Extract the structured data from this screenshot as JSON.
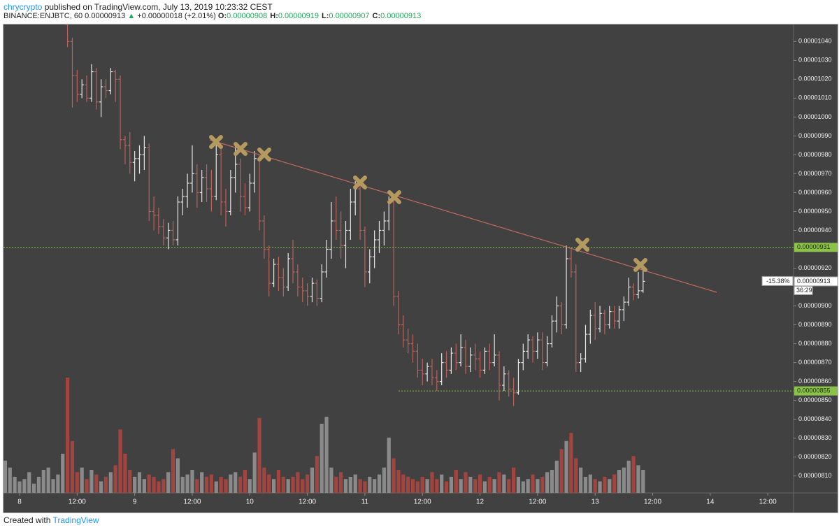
{
  "header": {
    "publisher": "chrycrypto",
    "published": "published on TradingView.com, July 13, 2019 10:23:32 CEST",
    "symbol": "BINANCE:ENJBTC, 60",
    "last": "0.00000913",
    "change": "+0.00000018 (+2.01%)",
    "ohlc": [
      {
        "label": "O:",
        "value": "0.00000908"
      },
      {
        "label": "H:",
        "value": "0.00000919"
      },
      {
        "label": "L:",
        "value": "0.00000907"
      },
      {
        "label": "C:",
        "value": "0.00000913"
      }
    ]
  },
  "footer": {
    "created": "Created with",
    "brand": "TradingView"
  },
  "chart_data": {
    "type": "ohlc",
    "xtick_labels": [
      "8",
      "12:00",
      "9",
      "12:00",
      "10",
      "12:00",
      "11",
      "12:00",
      "12",
      "12:00",
      "13",
      "12:00",
      "14",
      "12:00"
    ],
    "open": [
      null,
      null,
      null,
      null,
      null,
      null,
      null,
      null,
      null,
      null,
      null,
      null,
      null,
      1.049e-05,
      1.04e-05,
      1.022e-05,
      1.012e-05,
      1.017e-05,
      1.01e-05,
      1.024e-05,
      1.008e-05,
      1.016e-05,
      1.014e-05,
      1.024e-05,
      1.02e-05,
      9.88e-06,
      9.85e-06,
      9.76e-06,
      9.78e-06,
      9.8e-06,
      9.84e-06,
      9.5e-06,
      9.48e-06,
      9.42e-06,
      9.36e-06,
      9.4e-06,
      9.35e-06,
      9.55e-06,
      9.58e-06,
      9.65e-06,
      9.7e-06,
      9.6e-06,
      9.68e-06,
      9.62e-06,
      9.58e-06,
      9.8e-06,
      9.55e-06,
      9.5e-06,
      9.68e-06,
      9.75e-06,
      9.58e-06,
      9.52e-06,
      9.65e-06,
      9.78e-06,
      9.45e-06,
      9.3e-06,
      9.12e-06,
      9.22e-06,
      9.15e-06,
      9.1e-06,
      9.25e-06,
      9.18e-06,
      9.1e-06,
      9.08e-06,
      9.05e-06,
      9.12e-06,
      9.04e-06,
      9.18e-06,
      9.3e-06,
      9.45e-06,
      9.4e-06,
      9.32e-06,
      9.4e-06,
      9.55e-06,
      9.62e-06,
      9.4e-06,
      9.18e-06,
      9.26e-06,
      9.35e-06,
      9.4e-06,
      9.45e-06,
      9.55e-06,
      9.05e-06,
      8.9e-06,
      8.82e-06,
      8.8e-06,
      8.76e-06,
      8.66e-06,
      8.64e-06,
      8.68e-06,
      8.62e-06,
      8.6e-06,
      8.7e-06,
      8.66e-06,
      8.75e-06,
      8.7e-06,
      8.78e-06,
      8.68e-06,
      8.74e-06,
      8.72e-06,
      8.66e-06,
      8.76e-06,
      8.7e-06,
      8.74e-06,
      8.58e-06,
      8.64e-06,
      8.56e-06,
      8.54e-06,
      8.7e-06,
      8.76e-06,
      8.82e-06,
      8.76e-06,
      8.82e-06,
      8.7e-06,
      8.8e-06,
      8.92e-06,
      9e-06,
      8.9e-06,
      9.25e-06,
      9.18e-06,
      8.7e-06,
      8.72e-06,
      8.85e-06,
      8.95e-06,
      8.88e-06,
      8.96e-06,
      8.9e-06,
      8.97e-06,
      8.92e-06,
      8.98e-06,
      9.02e-06,
      9.1e-06,
      9.06e-06,
      9.08e-06
    ],
    "high": [
      null,
      null,
      null,
      null,
      null,
      null,
      null,
      null,
      null,
      null,
      null,
      null,
      null,
      1.053e-05,
      1.042e-05,
      1.025e-05,
      1.02e-05,
      1.022e-05,
      1.028e-05,
      1.026e-05,
      1.02e-05,
      1.02e-05,
      1.026e-05,
      1.025e-05,
      1.022e-05,
      9.9e-06,
      9.92e-06,
      9.82e-06,
      9.85e-06,
      9.9e-06,
      9.86e-06,
      9.58e-06,
      9.52e-06,
      9.46e-06,
      9.44e-06,
      9.45e-06,
      9.58e-06,
      9.62e-06,
      9.7e-06,
      9.85e-06,
      9.75e-06,
      9.72e-06,
      9.75e-06,
      9.72e-06,
      9.88e-06,
      9.84e-06,
      9.62e-06,
      9.72e-06,
      9.85e-06,
      9.78e-06,
      9.65e-06,
      9.7e-06,
      9.82e-06,
      9.8e-06,
      9.48e-06,
      9.32e-06,
      9.25e-06,
      9.26e-06,
      9.2e-06,
      9.28e-06,
      9.35e-06,
      9.22e-06,
      9.15e-06,
      9.12e-06,
      9.15e-06,
      9.14e-06,
      9.22e-06,
      9.35e-06,
      9.55e-06,
      9.58e-06,
      9.5e-06,
      9.45e-06,
      9.62e-06,
      9.66e-06,
      9.65e-06,
      9.42e-06,
      9.3e-06,
      9.4e-06,
      9.45e-06,
      9.5e-06,
      9.58e-06,
      9.58e-06,
      9.08e-06,
      8.95e-06,
      8.88e-06,
      8.85e-06,
      8.8e-06,
      8.72e-06,
      8.7e-06,
      8.72e-06,
      8.66e-06,
      8.75e-06,
      8.76e-06,
      8.78e-06,
      8.8e-06,
      8.85e-06,
      8.82e-06,
      8.78e-06,
      8.8e-06,
      8.76e-06,
      8.78e-06,
      8.8e-06,
      8.85e-06,
      8.76e-06,
      8.68e-06,
      8.66e-06,
      8.62e-06,
      8.72e-06,
      8.8e-06,
      8.85e-06,
      8.84e-06,
      8.86e-06,
      8.86e-06,
      8.84e-06,
      8.95e-06,
      9.05e-06,
      9.02e-06,
      9.32e-06,
      9.3e-06,
      9.22e-06,
      8.75e-06,
      8.9e-06,
      8.98e-06,
      9.02e-06,
      9e-06,
      8.98e-06,
      9e-06,
      9e-06,
      9e-06,
      9.05e-06,
      9.15e-06,
      9.12e-06,
      9.18e-06,
      9.19e-06
    ],
    "low": [
      null,
      null,
      null,
      null,
      null,
      null,
      null,
      null,
      null,
      null,
      null,
      null,
      null,
      1.037e-05,
      1.005e-05,
      1.008e-05,
      1.01e-05,
      1.008e-05,
      1.008e-05,
      1.004e-05,
      1e-05,
      1.01e-05,
      1.012e-05,
      1.008e-05,
      9.83e-06,
      9.75e-06,
      9.7e-06,
      9.66e-06,
      9.7e-06,
      9.72e-06,
      9.45e-06,
      9.4e-06,
      9.38e-06,
      9.32e-06,
      9.3e-06,
      9.32e-06,
      9.32e-06,
      9.48e-06,
      9.52e-06,
      9.6e-06,
      9.52e-06,
      9.55e-06,
      9.55e-06,
      9.5e-06,
      9.56e-06,
      9.48e-06,
      9.42e-06,
      9.48e-06,
      9.6e-06,
      9.5e-06,
      9.48e-06,
      9.5e-06,
      9.6e-06,
      9.4e-06,
      9.25e-06,
      9.05e-06,
      9.1e-06,
      9.08e-06,
      9.05e-06,
      9.08e-06,
      9.12e-06,
      9.05e-06,
      9.02e-06,
      9e-06,
      9.02e-06,
      9e-06,
      9.02e-06,
      9.15e-06,
      9.25e-06,
      9.35e-06,
      9.25e-06,
      9.2e-06,
      9.35e-06,
      9.48e-06,
      9.35e-06,
      9.1e-06,
      9.12e-06,
      9.2e-06,
      9.28e-06,
      9.32e-06,
      9.4e-06,
      9e-06,
      8.85e-06,
      8.78e-06,
      8.75e-06,
      8.7e-06,
      8.62e-06,
      8.58e-06,
      8.6e-06,
      8.58e-06,
      8.55e-06,
      8.58e-06,
      8.62e-06,
      8.64e-06,
      8.66e-06,
      8.68e-06,
      8.64e-06,
      8.65e-06,
      8.66e-06,
      8.62e-06,
      8.64e-06,
      8.66e-06,
      8.68e-06,
      8.5e-06,
      8.55e-06,
      8.52e-06,
      8.47e-06,
      8.53e-06,
      8.66e-06,
      8.72e-06,
      8.7e-06,
      8.72e-06,
      8.66e-06,
      8.68e-06,
      8.78e-06,
      8.86e-06,
      8.85e-06,
      8.88e-06,
      9.15e-06,
      8.65e-06,
      8.65e-06,
      8.7e-06,
      8.8e-06,
      8.82e-06,
      8.86e-06,
      8.85e-06,
      8.88e-06,
      8.88e-06,
      8.88e-06,
      8.92e-06,
      9e-06,
      9.03e-06,
      9.04e-06,
      9.07e-06
    ],
    "close": [
      null,
      null,
      null,
      null,
      null,
      null,
      null,
      null,
      null,
      null,
      null,
      null,
      null,
      1.04e-05,
      1.022e-05,
      1.012e-05,
      1.017e-05,
      1.01e-05,
      1.024e-05,
      1.008e-05,
      1.016e-05,
      1.014e-05,
      1.024e-05,
      1.02e-05,
      9.88e-06,
      9.85e-06,
      9.76e-06,
      9.78e-06,
      9.8e-06,
      9.84e-06,
      9.5e-06,
      9.48e-06,
      9.42e-06,
      9.36e-06,
      9.4e-06,
      9.35e-06,
      9.55e-06,
      9.58e-06,
      9.65e-06,
      9.7e-06,
      9.6e-06,
      9.68e-06,
      9.62e-06,
      9.58e-06,
      9.8e-06,
      9.55e-06,
      9.5e-06,
      9.68e-06,
      9.75e-06,
      9.58e-06,
      9.52e-06,
      9.65e-06,
      9.78e-06,
      9.45e-06,
      9.3e-06,
      9.12e-06,
      9.22e-06,
      9.15e-06,
      9.1e-06,
      9.25e-06,
      9.18e-06,
      9.1e-06,
      9.08e-06,
      9.05e-06,
      9.12e-06,
      9.04e-06,
      9.18e-06,
      9.3e-06,
      9.45e-06,
      9.4e-06,
      9.32e-06,
      9.4e-06,
      9.55e-06,
      9.62e-06,
      9.4e-06,
      9.18e-06,
      9.26e-06,
      9.35e-06,
      9.4e-06,
      9.45e-06,
      9.55e-06,
      9.05e-06,
      8.9e-06,
      8.82e-06,
      8.8e-06,
      8.76e-06,
      8.66e-06,
      8.64e-06,
      8.68e-06,
      8.62e-06,
      8.6e-06,
      8.7e-06,
      8.66e-06,
      8.75e-06,
      8.7e-06,
      8.78e-06,
      8.68e-06,
      8.74e-06,
      8.72e-06,
      8.66e-06,
      8.76e-06,
      8.7e-06,
      8.74e-06,
      8.58e-06,
      8.64e-06,
      8.56e-06,
      8.54e-06,
      8.7e-06,
      8.76e-06,
      8.82e-06,
      8.76e-06,
      8.82e-06,
      8.7e-06,
      8.8e-06,
      8.92e-06,
      9e-06,
      8.9e-06,
      9.25e-06,
      9.18e-06,
      8.7e-06,
      8.72e-06,
      8.85e-06,
      8.95e-06,
      8.88e-06,
      8.96e-06,
      8.9e-06,
      8.97e-06,
      8.92e-06,
      8.98e-06,
      9.02e-06,
      9.1e-06,
      9.06e-06,
      9.08e-06,
      9.13e-06
    ],
    "volume": [
      28,
      22,
      14,
      10,
      12,
      18,
      8,
      14,
      20,
      22,
      12,
      16,
      34,
      100,
      45,
      18,
      22,
      12,
      20,
      16,
      10,
      14,
      18,
      24,
      55,
      34,
      20,
      14,
      18,
      12,
      16,
      14,
      10,
      12,
      18,
      38,
      30,
      14,
      16,
      20,
      12,
      18,
      14,
      16,
      10,
      14,
      12,
      16,
      18,
      14,
      20,
      12,
      35,
      65,
      22,
      16,
      12,
      20,
      14,
      12,
      14,
      18,
      12,
      16,
      22,
      32,
      60,
      66,
      22,
      14,
      18,
      12,
      14,
      16,
      12,
      10,
      14,
      12,
      16,
      22,
      48,
      30,
      20,
      16,
      14,
      12,
      10,
      14,
      12,
      18,
      12,
      16,
      10,
      14,
      20,
      12,
      18,
      14,
      12,
      16,
      10,
      14,
      12,
      18,
      16,
      12,
      22,
      14,
      10,
      12,
      16,
      12,
      14,
      18,
      20,
      28,
      38,
      45,
      52,
      30,
      22,
      14,
      16,
      12,
      10,
      14,
      12,
      16,
      20,
      22,
      28,
      32,
      24,
      20
    ],
    "up_color": "#e6e6e6",
    "down_color": "#b9625a",
    "volume_up_color": "#8a8a8a",
    "volume_down_color": "#a24440",
    "ylim": [
      8.01e-06,
      1.049e-05
    ],
    "yticks": [
      {
        "value": 8.1e-06,
        "label": "0.00000810"
      },
      {
        "value": 8.2e-06,
        "label": "0.00000820"
      },
      {
        "value": 8.3e-06,
        "label": "0.00000830"
      },
      {
        "value": 8.4e-06,
        "label": "0.00000840"
      },
      {
        "value": 8.5e-06,
        "label": "0.00000850"
      },
      {
        "value": 8.6e-06,
        "label": "0.00000860"
      },
      {
        "value": 8.7e-06,
        "label": "0.00000870"
      },
      {
        "value": 8.8e-06,
        "label": "0.00000880"
      },
      {
        "value": 8.9e-06,
        "label": "0.00000890"
      },
      {
        "value": 9e-06,
        "label": "0.00000900"
      },
      {
        "value": 9.2e-06,
        "label": "0.00000920"
      },
      {
        "value": 9.4e-06,
        "label": "0.00000940"
      },
      {
        "value": 9.5e-06,
        "label": "0.00000950"
      },
      {
        "value": 9.6e-06,
        "label": "0.00000960"
      },
      {
        "value": 9.7e-06,
        "label": "0.00000970"
      },
      {
        "value": 9.8e-06,
        "label": "0.00000980"
      },
      {
        "value": 9.9e-06,
        "label": "0.00000990"
      },
      {
        "value": 1e-05,
        "label": "0.00001000"
      },
      {
        "value": 1.01e-05,
        "label": "0.00001010"
      },
      {
        "value": 1.02e-05,
        "label": "0.00001020"
      },
      {
        "value": 1.03e-05,
        "label": "0.00001030"
      },
      {
        "value": 1.04e-05,
        "label": "0.00001040"
      }
    ],
    "price_lines": [
      {
        "value": 9.31e-06,
        "label": "0.00000931"
      },
      {
        "value": 8.55e-06,
        "label": "0.00000855"
      }
    ],
    "price_line_color": "#8bc34a",
    "current_price": {
      "value": 9.13e-06,
      "label": "0.00000913",
      "change_label": "-15.38%",
      "countdown": "36:29"
    }
  }
}
